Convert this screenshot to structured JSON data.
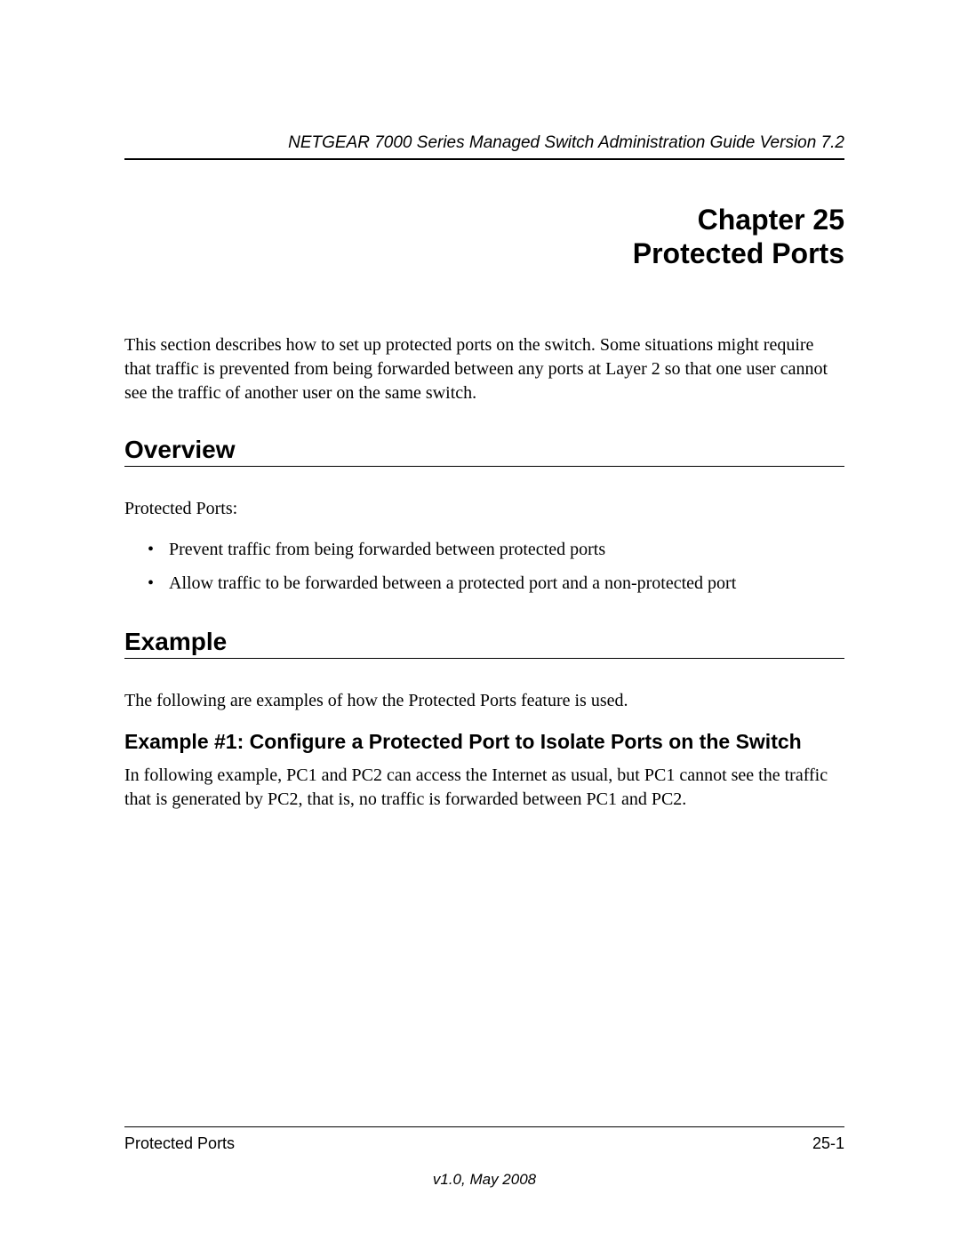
{
  "header": {
    "doc_title": "NETGEAR 7000 Series Managed Switch Administration Guide Version 7.2"
  },
  "chapter": {
    "number_line": "Chapter 25",
    "title_line": "Protected Ports"
  },
  "intro": "This section describes how to set up protected ports on the switch. Some situations might require that traffic is prevented from being forwarded between any ports at Layer 2 so that one user cannot see the traffic of another user on the same switch.",
  "sections": {
    "overview": {
      "heading": "Overview",
      "lead": "Protected Ports:",
      "bullets": [
        "Prevent traffic from being forwarded between protected ports",
        "Allow traffic to be forwarded between a protected port and a non-protected port"
      ]
    },
    "example": {
      "heading": "Example",
      "lead": "The following are examples of how the Protected Ports feature is used.",
      "sub_heading": "Example #1: Configure a Protected Port to Isolate Ports on the Switch",
      "sub_body": "In following example, PC1 and PC2 can access the Internet as usual, but PC1 cannot see the traffic that is generated by PC2, that is, no traffic is forwarded between PC1 and PC2."
    }
  },
  "footer": {
    "left": "Protected Ports",
    "right": "25-1",
    "version": "v1.0, May 2008"
  },
  "colors": {
    "text": "#000000",
    "background": "#ffffff",
    "rule": "#000000"
  },
  "typography": {
    "body_family": "Times New Roman",
    "heading_family": "Arial",
    "body_size_pt": 15,
    "h1_size_pt": 24,
    "h2_size_pt": 21,
    "h3_size_pt": 17
  }
}
